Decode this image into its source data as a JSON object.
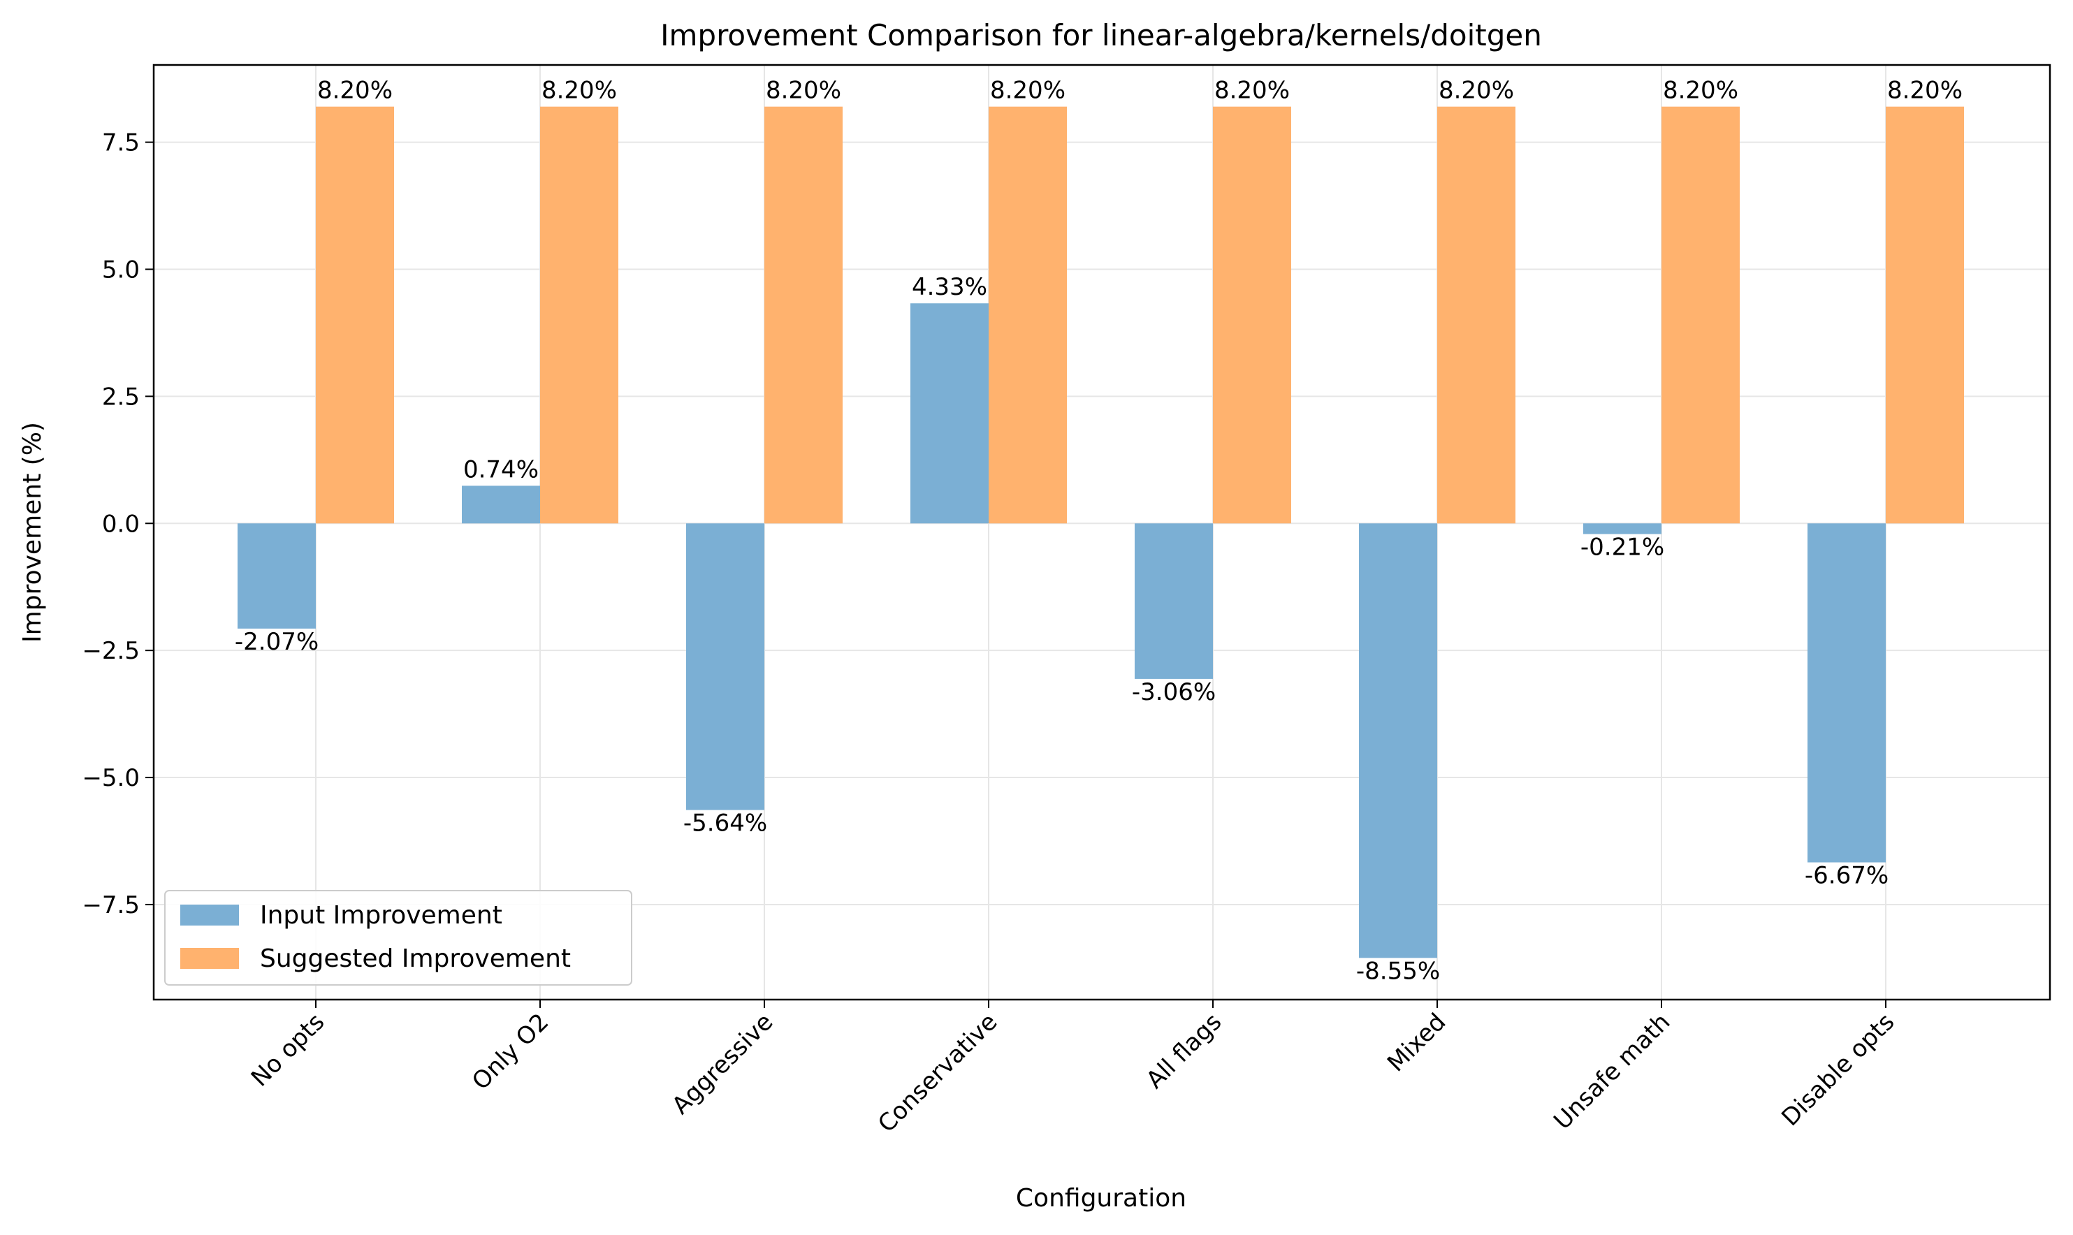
{
  "chart_data": {
    "type": "bar",
    "title": "Improvement Comparison for linear-algebra/kernels/doitgen",
    "xlabel": "Configuration",
    "ylabel": "Improvement (%)",
    "categories": [
      "No opts",
      "Only O2",
      "Aggressive",
      "Conservative",
      "All flags",
      "Mixed",
      "Unsafe math",
      "Disable opts"
    ],
    "series": [
      {
        "name": "Input Improvement",
        "color": "#7bafd4",
        "values": [
          -2.07,
          0.74,
          -5.64,
          4.33,
          -3.06,
          -8.55,
          -0.21,
          -6.67
        ],
        "labels": [
          "-2.07%",
          "0.74%",
          "-5.64%",
          "4.33%",
          "-3.06%",
          "-8.55%",
          "-0.21%",
          "-6.67%"
        ]
      },
      {
        "name": "Suggested Improvement",
        "color": "#ffb26e",
        "values": [
          8.2,
          8.2,
          8.2,
          8.2,
          8.2,
          8.2,
          8.2,
          8.2
        ],
        "labels": [
          "8.20%",
          "8.20%",
          "8.20%",
          "8.20%",
          "8.20%",
          "8.20%",
          "8.20%",
          "8.20%"
        ]
      }
    ],
    "yticks": [
      -7.5,
      -5.0,
      -2.5,
      0.0,
      2.5,
      5.0,
      7.5
    ],
    "ytick_labels": [
      "−7.5",
      "−5.0",
      "−2.5",
      "0.0",
      "2.5",
      "5.0",
      "7.5"
    ],
    "ylim": [
      -9.37,
      9.02
    ],
    "grid": true,
    "legend_position": "lower-left"
  }
}
